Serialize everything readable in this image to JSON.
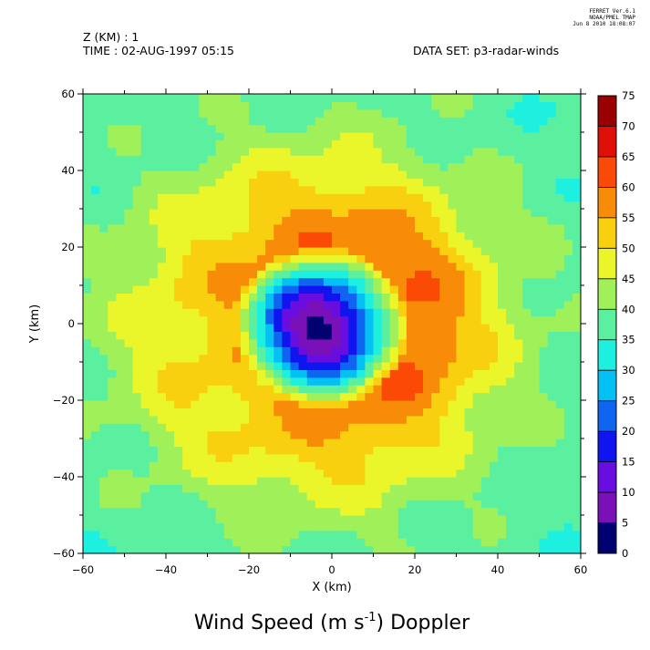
{
  "header": {
    "ferret_stamp": [
      "FERRET  Ver.6.1",
      "NOAA/PMEL TMAP",
      "Jun  8 2010 18:08:07"
    ],
    "z_label": "Z (KM) : 1",
    "time_label": "TIME : 02-AUG-1997 05:15",
    "dataset_label": "DATA SET: p3-radar-winds"
  },
  "colors": {
    "palette": [
      "#00007f",
      "#5500aa",
      "#7f00ff",
      "#0000ff",
      "#0055ff",
      "#00aaff",
      "#00ffff",
      "#55ffaa",
      "#aaff55",
      "#ffff00",
      "#ffaa00",
      "#ff5500",
      "#ff0000",
      "#aa0000",
      "#7f0000"
    ],
    "rendered": [
      "#000070",
      "#7a10b8",
      "#6a0de0",
      "#1015f0",
      "#1065f0",
      "#05c0f5",
      "#1ef0e0",
      "#5af0a0",
      "#a0f05a",
      "#eaf52a",
      "#f8d010",
      "#f88c08",
      "#fa4a05",
      "#e01008",
      "#9a0000"
    ]
  },
  "chart_data": {
    "type": "heatmap",
    "subtype": "filled-contour",
    "title": "Wind Speed (m s",
    "title_superscript": "-1",
    "title_suffix": ") Doppler",
    "xlabel": "X (km)",
    "ylabel": "Y (km)",
    "xlim": [
      -60,
      60
    ],
    "ylim": [
      -60,
      60
    ],
    "xticks": [
      -60,
      -40,
      -20,
      0,
      20,
      40,
      60
    ],
    "yticks": [
      -60,
      -40,
      -20,
      0,
      20,
      40,
      60
    ],
    "x_tick_labels": [
      "−60",
      "−40",
      "−20",
      "0",
      "20",
      "40",
      "60"
    ],
    "y_tick_labels": [
      "−60",
      "−40",
      "−20",
      "0",
      "20",
      "40",
      "60"
    ],
    "grid": false,
    "colorbar": {
      "levels": [
        0,
        5,
        10,
        15,
        20,
        25,
        30,
        35,
        40,
        45,
        50,
        55,
        60,
        65,
        70,
        75
      ],
      "level_labels": [
        "0",
        "5",
        "10",
        "15",
        "20",
        "25",
        "30",
        "35",
        "40",
        "45",
        "50",
        "55",
        "60",
        "65",
        "70",
        "75"
      ],
      "placement": "right"
    },
    "field": {
      "center": [
        -3,
        -1
      ],
      "eyewall_radius_km": 21,
      "max_wind": 57,
      "eye_min": 2,
      "outer_edge_wind": 33
    }
  }
}
